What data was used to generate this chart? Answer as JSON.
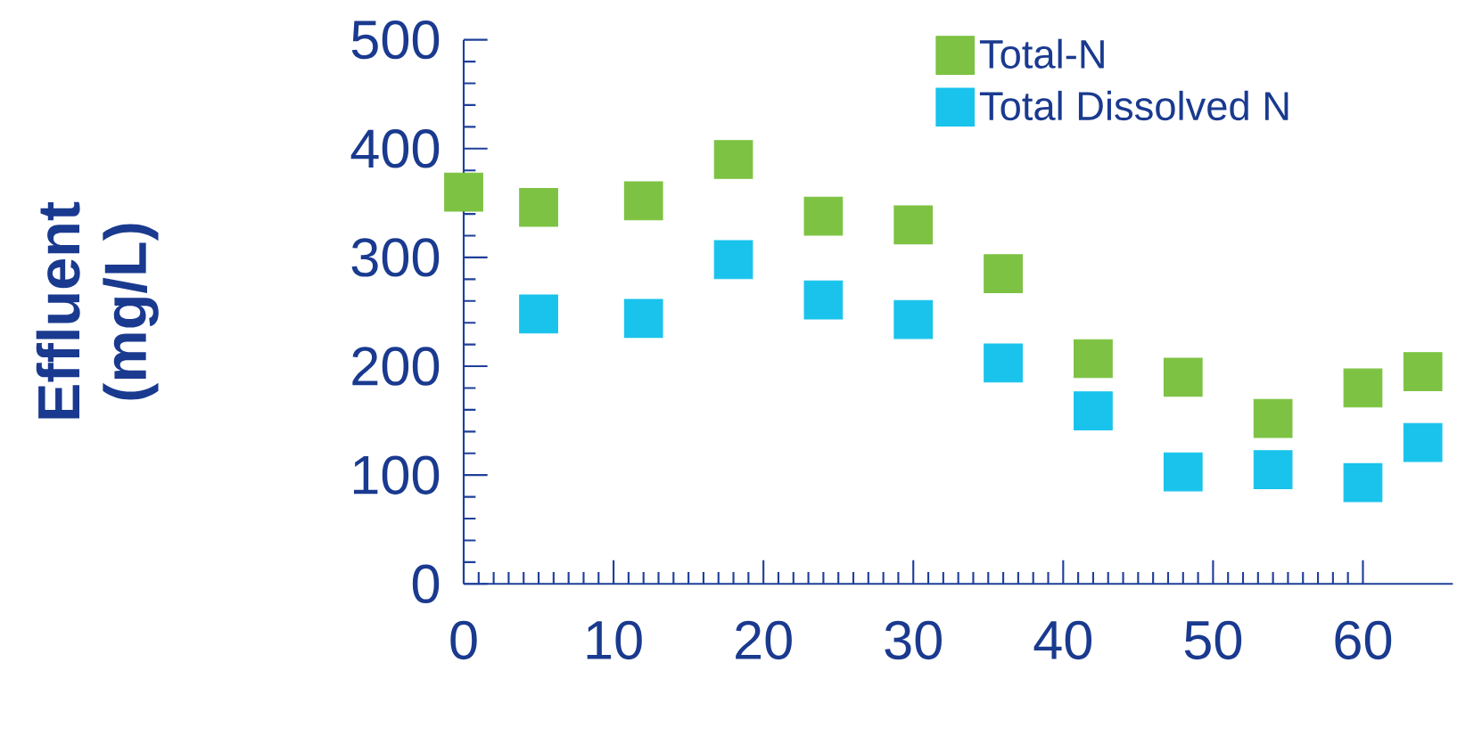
{
  "chart_data": {
    "type": "scatter",
    "ylabel": "Effluent (mg/L)",
    "xlim": [
      0,
      66
    ],
    "ylim": [
      0,
      500
    ],
    "xticks": [
      0,
      10,
      20,
      30,
      40,
      50,
      60
    ],
    "yticks": [
      0,
      100,
      200,
      300,
      400,
      500
    ],
    "legend": "top right",
    "marker": "square",
    "series": [
      {
        "name": "Total-N",
        "color": "#7dc242",
        "x": [
          0,
          5,
          12,
          18,
          24,
          30,
          36,
          42,
          48,
          54,
          60,
          64
        ],
        "values": [
          360,
          346,
          352,
          390,
          338,
          330,
          285,
          207,
          190,
          152,
          180,
          195
        ]
      },
      {
        "name": "Total Dissolved N",
        "color": "#19c3ec",
        "x": [
          5,
          12,
          18,
          24,
          30,
          36,
          42,
          48,
          54,
          60,
          64
        ],
        "values": [
          248,
          244,
          298,
          261,
          243,
          203,
          159,
          103,
          105,
          93,
          130
        ]
      }
    ]
  }
}
